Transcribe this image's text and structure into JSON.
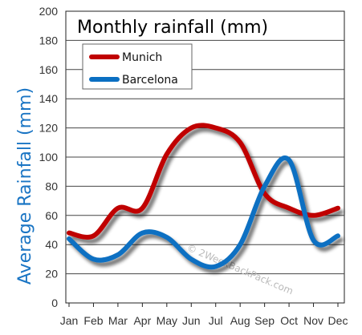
{
  "chart_data": {
    "type": "line",
    "title": "Monthly rainfall (mm)",
    "xlabel": "",
    "ylabel": "Average Rainfall (mm)",
    "categories": [
      "Jan",
      "Feb",
      "Mar",
      "Apr",
      "May",
      "Jun",
      "Jul",
      "Aug",
      "Sep",
      "Oct",
      "Nov",
      "Dec"
    ],
    "series": [
      {
        "name": "Munich",
        "color": "#c00000",
        "values": [
          48,
          46,
          65,
          65,
          102,
          120,
          120,
          110,
          75,
          65,
          60,
          65
        ]
      },
      {
        "name": "Barcelona",
        "color": "#0a6fc2",
        "values": [
          44,
          30,
          33,
          48,
          45,
          30,
          25,
          40,
          80,
          98,
          43,
          46
        ]
      }
    ],
    "ylim": [
      0,
      200
    ],
    "yticks": [
      0,
      20,
      40,
      60,
      80,
      100,
      120,
      140,
      160,
      180,
      200
    ],
    "grid": true,
    "legend_position": "top-left",
    "watermark": "© 2WeekBackPack.com"
  }
}
